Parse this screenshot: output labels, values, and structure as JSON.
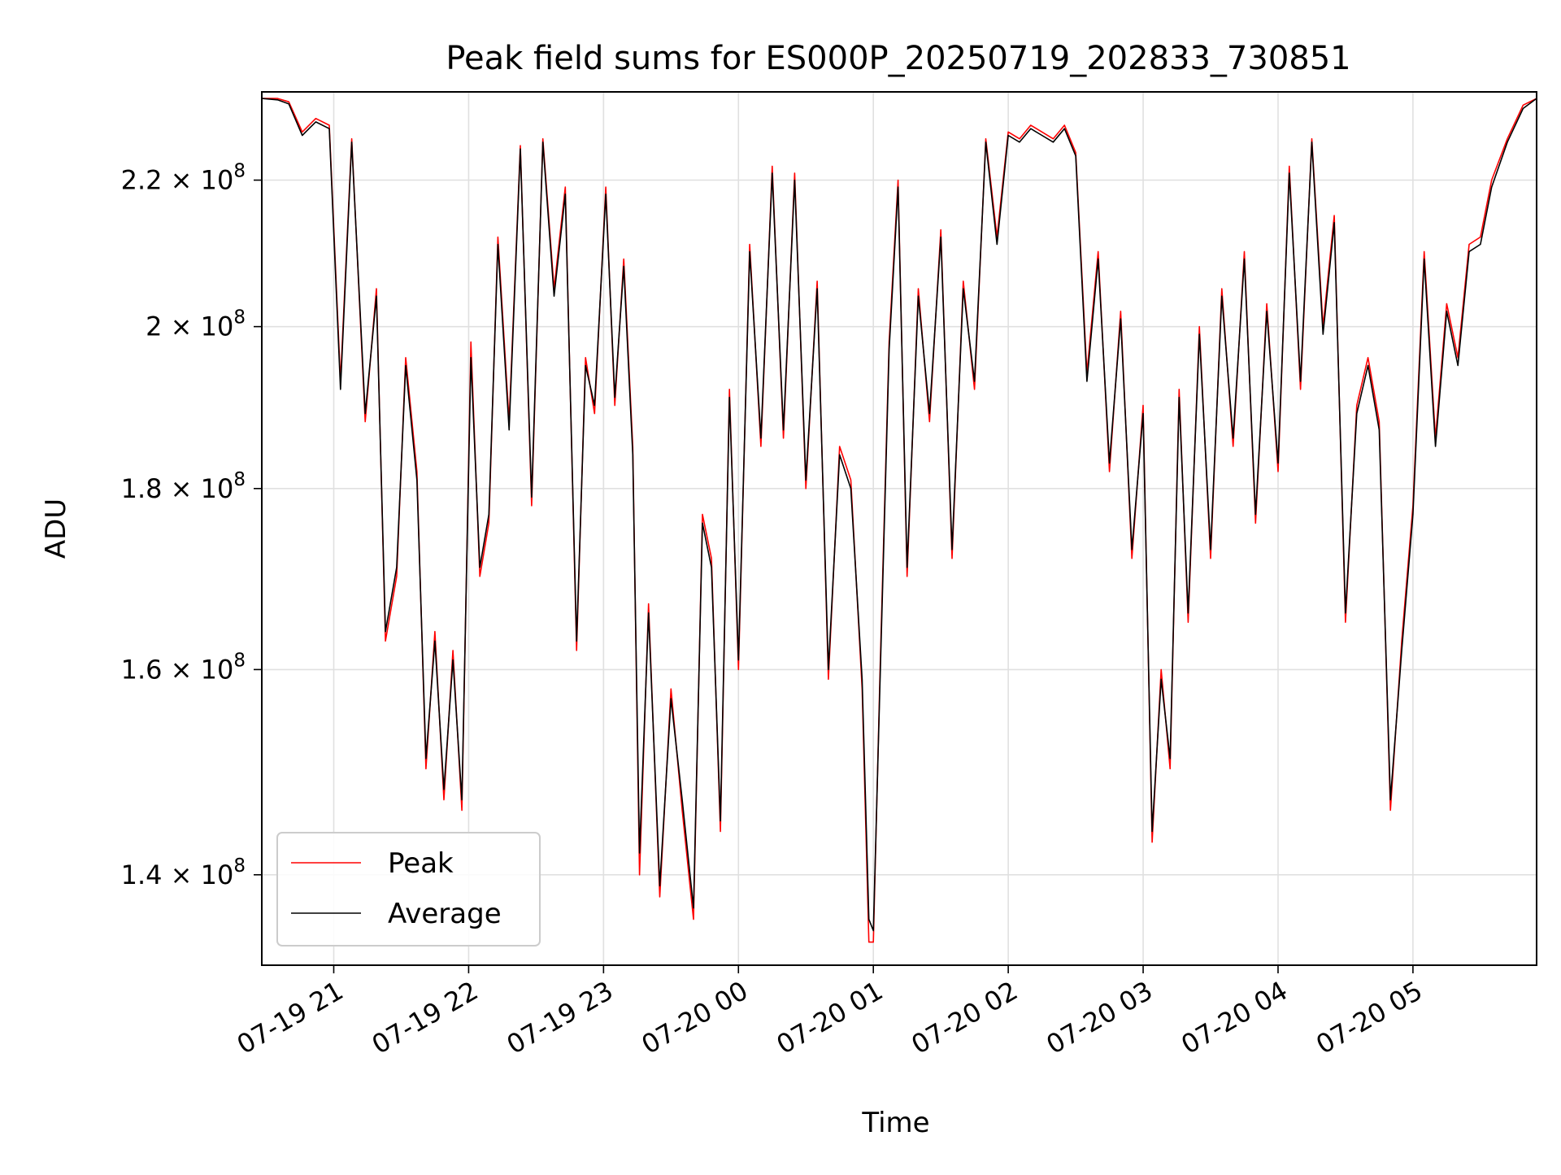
{
  "chart_data": {
    "type": "line",
    "title": "Peak field sums for ES000P_20250719_202833_730851",
    "xlabel": "Time",
    "ylabel": "ADU",
    "yscale": "log",
    "grid": true,
    "legend_position": "lower-left",
    "x_range": [
      "2025-07-19 20:28",
      "2025-07-20 05:55"
    ],
    "ylim": [
      132000000,
      233000000
    ],
    "x_ticks": [
      {
        "t": "2025-07-19 21:00",
        "label": "07-19 21"
      },
      {
        "t": "2025-07-19 22:00",
        "label": "07-19 22"
      },
      {
        "t": "2025-07-19 23:00",
        "label": "07-19 23"
      },
      {
        "t": "2025-07-20 00:00",
        "label": "07-20 00"
      },
      {
        "t": "2025-07-20 01:00",
        "label": "07-20 01"
      },
      {
        "t": "2025-07-20 02:00",
        "label": "07-20 02"
      },
      {
        "t": "2025-07-20 03:00",
        "label": "07-20 03"
      },
      {
        "t": "2025-07-20 04:00",
        "label": "07-20 04"
      },
      {
        "t": "2025-07-20 05:00",
        "label": "07-20 05"
      }
    ],
    "y_ticks": [
      {
        "value": 140000000,
        "mant": "1.4",
        "exp": "8"
      },
      {
        "value": 160000000,
        "mant": "1.6",
        "exp": "8"
      },
      {
        "value": 180000000,
        "mant": "1.8",
        "exp": "8"
      },
      {
        "value": 200000000,
        "mant": "2",
        "exp": "8"
      },
      {
        "value": 220000000,
        "mant": "2.2",
        "exp": "8"
      }
    ],
    "series": [
      {
        "name": "Peak",
        "color": "#ff0000"
      },
      {
        "name": "Average",
        "color": "#000000"
      }
    ],
    "x": [
      "2025-07-19 20:28",
      "2025-07-19 20:35",
      "2025-07-19 20:40",
      "2025-07-19 20:46",
      "2025-07-19 20:52",
      "2025-07-19 20:58",
      "2025-07-19 21:03",
      "2025-07-19 21:08",
      "2025-07-19 21:14",
      "2025-07-19 21:19",
      "2025-07-19 21:23",
      "2025-07-19 21:28",
      "2025-07-19 21:32",
      "2025-07-19 21:37",
      "2025-07-19 21:41",
      "2025-07-19 21:45",
      "2025-07-19 21:49",
      "2025-07-19 21:53",
      "2025-07-19 21:57",
      "2025-07-19 22:01",
      "2025-07-19 22:05",
      "2025-07-19 22:09",
      "2025-07-19 22:13",
      "2025-07-19 22:18",
      "2025-07-19 22:23",
      "2025-07-19 22:28",
      "2025-07-19 22:33",
      "2025-07-19 22:38",
      "2025-07-19 22:43",
      "2025-07-19 22:48",
      "2025-07-19 22:52",
      "2025-07-19 22:56",
      "2025-07-19 23:01",
      "2025-07-19 23:05",
      "2025-07-19 23:09",
      "2025-07-19 23:13",
      "2025-07-19 23:16",
      "2025-07-19 23:20",
      "2025-07-19 23:25",
      "2025-07-19 23:30",
      "2025-07-19 23:35",
      "2025-07-19 23:40",
      "2025-07-19 23:44",
      "2025-07-19 23:48",
      "2025-07-19 23:52",
      "2025-07-19 23:56",
      "2025-07-20 00:00",
      "2025-07-20 00:05",
      "2025-07-20 00:10",
      "2025-07-20 00:15",
      "2025-07-20 00:20",
      "2025-07-20 00:25",
      "2025-07-20 00:30",
      "2025-07-20 00:35",
      "2025-07-20 00:40",
      "2025-07-20 00:45",
      "2025-07-20 00:50",
      "2025-07-20 00:55",
      "2025-07-20 00:58",
      "2025-07-20 01:00",
      "2025-07-20 01:03",
      "2025-07-20 01:07",
      "2025-07-20 01:11",
      "2025-07-20 01:15",
      "2025-07-20 01:20",
      "2025-07-20 01:25",
      "2025-07-20 01:30",
      "2025-07-20 01:35",
      "2025-07-20 01:40",
      "2025-07-20 01:45",
      "2025-07-20 01:50",
      "2025-07-20 01:55",
      "2025-07-20 02:00",
      "2025-07-20 02:05",
      "2025-07-20 02:10",
      "2025-07-20 02:15",
      "2025-07-20 02:20",
      "2025-07-20 02:25",
      "2025-07-20 02:30",
      "2025-07-20 02:35",
      "2025-07-20 02:40",
      "2025-07-20 02:45",
      "2025-07-20 02:50",
      "2025-07-20 02:55",
      "2025-07-20 03:00",
      "2025-07-20 03:04",
      "2025-07-20 03:08",
      "2025-07-20 03:12",
      "2025-07-20 03:16",
      "2025-07-20 03:20",
      "2025-07-20 03:25",
      "2025-07-20 03:30",
      "2025-07-20 03:35",
      "2025-07-20 03:40",
      "2025-07-20 03:45",
      "2025-07-20 03:50",
      "2025-07-20 03:55",
      "2025-07-20 04:00",
      "2025-07-20 04:05",
      "2025-07-20 04:10",
      "2025-07-20 04:15",
      "2025-07-20 04:20",
      "2025-07-20 04:25",
      "2025-07-20 04:30",
      "2025-07-20 04:35",
      "2025-07-20 04:40",
      "2025-07-20 04:45",
      "2025-07-20 04:50",
      "2025-07-20 04:55",
      "2025-07-20 05:00",
      "2025-07-20 05:05",
      "2025-07-20 05:10",
      "2025-07-20 05:15",
      "2025-07-20 05:20",
      "2025-07-20 05:25",
      "2025-07-20 05:30",
      "2025-07-20 05:35",
      "2025-07-20 05:42",
      "2025-07-20 05:49",
      "2025-07-20 05:55"
    ],
    "peak": [
      232000000,
      232000000,
      231500000,
      227000000,
      229000000,
      228000000,
      193000000,
      226000000,
      188000000,
      205000000,
      163000000,
      170000000,
      196000000,
      182000000,
      150000000,
      164000000,
      147000000,
      162000000,
      146000000,
      198000000,
      170000000,
      176000000,
      212000000,
      188000000,
      225000000,
      178000000,
      226000000,
      205000000,
      219000000,
      162000000,
      196000000,
      189000000,
      219000000,
      190000000,
      209000000,
      185000000,
      140000000,
      167000000,
      138000000,
      158000000,
      146000000,
      136000000,
      177000000,
      172000000,
      144000000,
      192000000,
      160000000,
      211000000,
      185000000,
      222000000,
      186000000,
      221000000,
      180000000,
      206000000,
      159000000,
      185000000,
      181000000,
      158000000,
      134000000,
      134000000,
      160000000,
      198000000,
      220000000,
      170000000,
      205000000,
      188000000,
      213000000,
      172000000,
      206000000,
      192000000,
      226000000,
      212000000,
      227000000,
      226000000,
      228000000,
      227000000,
      226000000,
      228000000,
      224000000,
      194000000,
      210000000,
      182000000,
      202000000,
      172000000,
      190000000,
      143000000,
      160000000,
      150000000,
      192000000,
      165000000,
      200000000,
      172000000,
      205000000,
      185000000,
      210000000,
      176000000,
      203000000,
      182000000,
      222000000,
      192000000,
      226000000,
      200000000,
      215000000,
      165000000,
      190000000,
      196000000,
      188000000,
      146000000,
      163000000,
      178000000,
      210000000,
      186000000,
      203000000,
      196000000,
      211000000,
      212000000,
      220000000,
      226000000,
      231000000,
      232000000
    ],
    "average": [
      232000000,
      231800000,
      231200000,
      226500000,
      228500000,
      227500000,
      192000000,
      225500000,
      189000000,
      204000000,
      164000000,
      171000000,
      195000000,
      181000000,
      151000000,
      163000000,
      148000000,
      161000000,
      147000000,
      196000000,
      171000000,
      177000000,
      211000000,
      187000000,
      224500000,
      179000000,
      225500000,
      204000000,
      218000000,
      163000000,
      195000000,
      190000000,
      218000000,
      191000000,
      208000000,
      184000000,
      142000000,
      166000000,
      139000000,
      157000000,
      147000000,
      137000000,
      176000000,
      171000000,
      145000000,
      191000000,
      161000000,
      210000000,
      186000000,
      221000000,
      187000000,
      220000000,
      181000000,
      205000000,
      160000000,
      184000000,
      180000000,
      159000000,
      136000000,
      135000000,
      159000000,
      197000000,
      219000000,
      171000000,
      204000000,
      189000000,
      212000000,
      173000000,
      205000000,
      193000000,
      225500000,
      211000000,
      226500000,
      225500000,
      227500000,
      226500000,
      225500000,
      227500000,
      223500000,
      193000000,
      209000000,
      183000000,
      201000000,
      173000000,
      189000000,
      144000000,
      159000000,
      151000000,
      191000000,
      166000000,
      199000000,
      173000000,
      204000000,
      186000000,
      209000000,
      177000000,
      202000000,
      183000000,
      221000000,
      193000000,
      225500000,
      199000000,
      214000000,
      166000000,
      189000000,
      195000000,
      187000000,
      147000000,
      162000000,
      177000000,
      209000000,
      185000000,
      202000000,
      195000000,
      210000000,
      211000000,
      219000000,
      225500000,
      230500000,
      232000000
    ]
  }
}
